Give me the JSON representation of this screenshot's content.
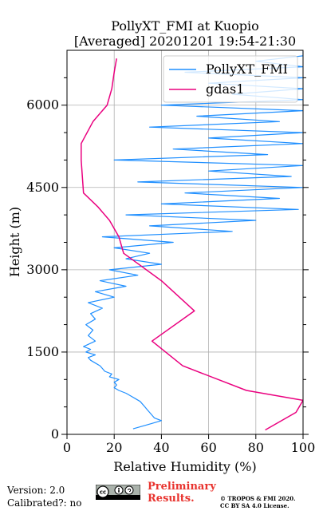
{
  "chart_data": {
    "type": "line",
    "title": "PollyXT_FMI at Kuopio",
    "subtitle": "[Averaged] 20201201 19:54-21:30",
    "xlabel": "Relative Humidity (%)",
    "ylabel": "Height (m)",
    "xlim": [
      0,
      100
    ],
    "ylim": [
      0,
      7000
    ],
    "xticks": [
      0,
      20,
      40,
      60,
      80,
      100
    ],
    "yticks": [
      0,
      1500,
      3000,
      4500,
      6000
    ],
    "grid": true,
    "legend_position": "top-right",
    "series": [
      {
        "name": "PollyXT_FMI",
        "color": "#1f8fff",
        "profile": [
          [
            100,
            28
          ],
          [
            200,
            36
          ],
          [
            250,
            40
          ],
          [
            300,
            37
          ],
          [
            350,
            36
          ],
          [
            400,
            35
          ],
          [
            450,
            34
          ],
          [
            500,
            33
          ],
          [
            550,
            32
          ],
          [
            600,
            31
          ],
          [
            650,
            29
          ],
          [
            700,
            27
          ],
          [
            750,
            25
          ],
          [
            800,
            22
          ],
          [
            850,
            20
          ],
          [
            900,
            21
          ],
          [
            950,
            20
          ],
          [
            1000,
            22
          ],
          [
            1050,
            18
          ],
          [
            1100,
            19
          ],
          [
            1150,
            16
          ],
          [
            1200,
            15
          ],
          [
            1250,
            14
          ],
          [
            1300,
            12
          ],
          [
            1350,
            10
          ],
          [
            1400,
            9
          ],
          [
            1450,
            12
          ],
          [
            1500,
            8
          ],
          [
            1550,
            10
          ],
          [
            1600,
            7
          ],
          [
            1700,
            12
          ],
          [
            1800,
            9
          ],
          [
            1900,
            11
          ],
          [
            2000,
            8
          ],
          [
            2100,
            12
          ],
          [
            2200,
            10
          ],
          [
            2300,
            15
          ],
          [
            2400,
            9
          ],
          [
            2500,
            20
          ],
          [
            2600,
            12
          ],
          [
            2700,
            25
          ],
          [
            2800,
            14
          ],
          [
            2900,
            30
          ],
          [
            3000,
            18
          ],
          [
            3100,
            40
          ],
          [
            3200,
            25
          ],
          [
            3300,
            35
          ],
          [
            3400,
            20
          ],
          [
            3500,
            45
          ],
          [
            3600,
            15
          ],
          [
            3700,
            70
          ],
          [
            3800,
            35
          ],
          [
            3900,
            80
          ],
          [
            4000,
            25
          ],
          [
            4100,
            98
          ],
          [
            4200,
            40
          ],
          [
            4300,
            90
          ],
          [
            4400,
            50
          ],
          [
            4500,
            100
          ],
          [
            4600,
            30
          ],
          [
            4700,
            95
          ],
          [
            4800,
            60
          ],
          [
            4900,
            100
          ],
          [
            5000,
            20
          ],
          [
            5100,
            85
          ],
          [
            5200,
            45
          ],
          [
            5300,
            100
          ],
          [
            5400,
            60
          ],
          [
            5500,
            100
          ],
          [
            5600,
            35
          ],
          [
            5700,
            90
          ],
          [
            5800,
            55
          ],
          [
            5900,
            100
          ],
          [
            6000,
            40
          ],
          [
            6100,
            100
          ],
          [
            6200,
            70
          ],
          [
            6300,
            100
          ],
          [
            6400,
            60
          ],
          [
            6500,
            100
          ],
          [
            6600,
            50
          ],
          [
            6700,
            100
          ],
          [
            6800,
            80
          ],
          [
            6900,
            100
          ],
          [
            7000,
            100
          ]
        ]
      },
      {
        "name": "gdas1",
        "color": "#ea007f",
        "profile": [
          [
            80,
            84
          ],
          [
            400,
            97
          ],
          [
            620,
            100
          ],
          [
            800,
            76
          ],
          [
            1250,
            49
          ],
          [
            1700,
            36
          ],
          [
            2250,
            54
          ],
          [
            2800,
            40
          ],
          [
            3300,
            24
          ],
          [
            3600,
            22
          ],
          [
            3900,
            18
          ],
          [
            4150,
            13
          ],
          [
            4400,
            7
          ],
          [
            5000,
            6
          ],
          [
            5300,
            6
          ],
          [
            5700,
            11
          ],
          [
            6000,
            17
          ],
          [
            6300,
            19
          ],
          [
            6600,
            20
          ],
          [
            6850,
            21
          ]
        ]
      }
    ]
  },
  "footer": {
    "version": "Version: 2.0",
    "calibrated": "Calibrated?: no",
    "preliminary_line1": "Preliminary",
    "preliminary_line2": "Results.",
    "copyright_line1": "© TROPOS & FMI 2020.",
    "copyright_line2": "CC BY SA 4.0 License.",
    "license_badge": "cc-by-sa-badge"
  }
}
